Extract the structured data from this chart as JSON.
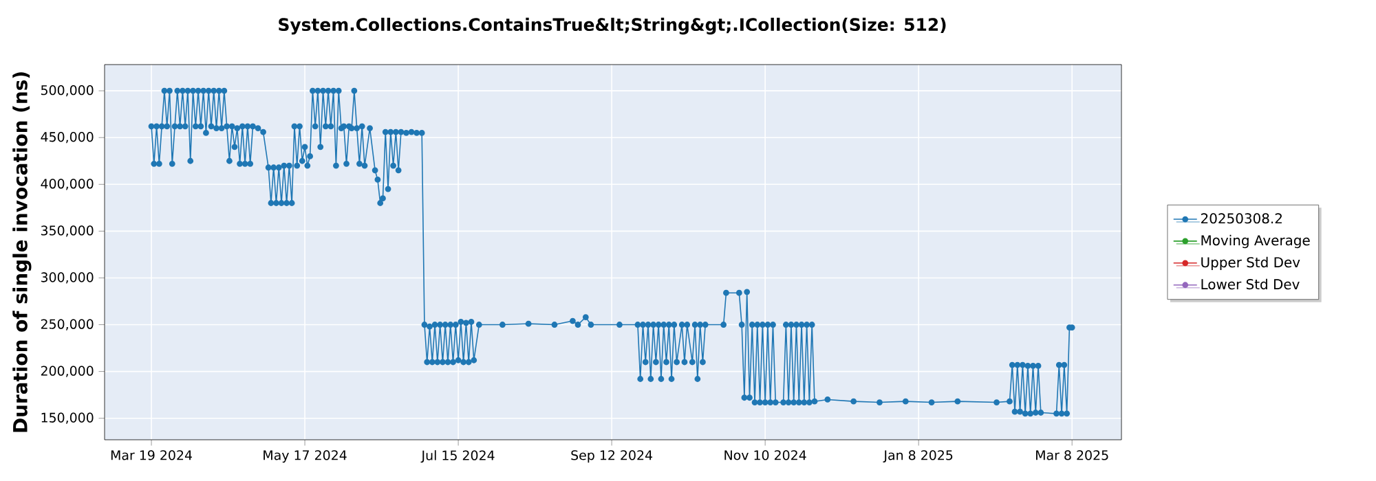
{
  "chart_data": {
    "type": "line",
    "title": "System.Collections.ContainsTrue&lt;String&gt;.ICollection(Size: 512)",
    "ylabel": "Duration of single invocation (ns)",
    "xlim": [
      "2024-03-01",
      "2025-03-27"
    ],
    "xticks": [
      {
        "value": "2024-03-19",
        "label": "Mar 19 2024"
      },
      {
        "value": "2024-05-17",
        "label": "May 17 2024"
      },
      {
        "value": "2024-07-15",
        "label": "Jul 15 2024"
      },
      {
        "value": "2024-09-12",
        "label": "Sep 12 2024"
      },
      {
        "value": "2024-11-10",
        "label": "Nov 10 2024"
      },
      {
        "value": "2025-01-08",
        "label": "Jan 8 2025"
      },
      {
        "value": "2025-03-08",
        "label": "Mar 8 2025"
      }
    ],
    "ylim": [
      127000,
      528000
    ],
    "yticks": [
      {
        "value": 150000,
        "label": "150,000"
      },
      {
        "value": 200000,
        "label": "200,000"
      },
      {
        "value": 250000,
        "label": "250,000"
      },
      {
        "value": 300000,
        "label": "300,000"
      },
      {
        "value": 350000,
        "label": "350,000"
      },
      {
        "value": 400000,
        "label": "400,000"
      },
      {
        "value": 450000,
        "label": "450,000"
      },
      {
        "value": 500000,
        "label": "500,000"
      }
    ],
    "grid": true,
    "legend": "right",
    "marker": "circle",
    "series": [
      {
        "name": "20250308.2",
        "color": "#1f77b4",
        "x": [
          "2024-03-19",
          "2024-03-20",
          "2024-03-21",
          "2024-03-22",
          "2024-03-23",
          "2024-03-24",
          "2024-03-25",
          "2024-03-26",
          "2024-03-27",
          "2024-03-28",
          "2024-03-29",
          "2024-03-30",
          "2024-03-31",
          "2024-04-01",
          "2024-04-02",
          "2024-04-03",
          "2024-04-04",
          "2024-04-05",
          "2024-04-06",
          "2024-04-07",
          "2024-04-08",
          "2024-04-09",
          "2024-04-10",
          "2024-04-11",
          "2024-04-12",
          "2024-04-13",
          "2024-04-14",
          "2024-04-15",
          "2024-04-16",
          "2024-04-17",
          "2024-04-18",
          "2024-04-19",
          "2024-04-20",
          "2024-04-21",
          "2024-04-22",
          "2024-04-23",
          "2024-04-24",
          "2024-04-25",
          "2024-04-26",
          "2024-04-27",
          "2024-04-29",
          "2024-05-01",
          "2024-05-03",
          "2024-05-04",
          "2024-05-05",
          "2024-05-06",
          "2024-05-07",
          "2024-05-08",
          "2024-05-09",
          "2024-05-10",
          "2024-05-11",
          "2024-05-12",
          "2024-05-13",
          "2024-05-14",
          "2024-05-15",
          "2024-05-16",
          "2024-05-17",
          "2024-05-18",
          "2024-05-19",
          "2024-05-20",
          "2024-05-21",
          "2024-05-22",
          "2024-05-23",
          "2024-05-24",
          "2024-05-25",
          "2024-05-26",
          "2024-05-27",
          "2024-05-28",
          "2024-05-29",
          "2024-05-30",
          "2024-05-31",
          "2024-06-01",
          "2024-06-02",
          "2024-06-03",
          "2024-06-04",
          "2024-06-05",
          "2024-06-06",
          "2024-06-07",
          "2024-06-08",
          "2024-06-09",
          "2024-06-11",
          "2024-06-13",
          "2024-06-14",
          "2024-06-15",
          "2024-06-16",
          "2024-06-17",
          "2024-06-18",
          "2024-06-19",
          "2024-06-20",
          "2024-06-21",
          "2024-06-22",
          "2024-06-23",
          "2024-06-25",
          "2024-06-27",
          "2024-06-29",
          "2024-07-01",
          "2024-07-02",
          "2024-07-03",
          "2024-07-04",
          "2024-07-05",
          "2024-07-06",
          "2024-07-07",
          "2024-07-08",
          "2024-07-09",
          "2024-07-10",
          "2024-07-11",
          "2024-07-12",
          "2024-07-13",
          "2024-07-14",
          "2024-07-15",
          "2024-07-16",
          "2024-07-17",
          "2024-07-18",
          "2024-07-19",
          "2024-07-20",
          "2024-07-21",
          "2024-07-23",
          "2024-08-01",
          "2024-08-11",
          "2024-08-21",
          "2024-08-28",
          "2024-08-30",
          "2024-09-02",
          "2024-09-04",
          "2024-09-15",
          "2024-09-22",
          "2024-09-23",
          "2024-09-24",
          "2024-09-25",
          "2024-09-26",
          "2024-09-27",
          "2024-09-28",
          "2024-09-29",
          "2024-09-30",
          "2024-10-01",
          "2024-10-02",
          "2024-10-03",
          "2024-10-04",
          "2024-10-05",
          "2024-10-06",
          "2024-10-07",
          "2024-10-09",
          "2024-10-10",
          "2024-10-11",
          "2024-10-13",
          "2024-10-14",
          "2024-10-15",
          "2024-10-16",
          "2024-10-17",
          "2024-10-18",
          "2024-10-25",
          "2024-10-26",
          "2024-10-31",
          "2024-11-01",
          "2024-11-02",
          "2024-11-03",
          "2024-11-04",
          "2024-11-05",
          "2024-11-06",
          "2024-11-07",
          "2024-11-08",
          "2024-11-09",
          "2024-11-10",
          "2024-11-11",
          "2024-11-12",
          "2024-11-13",
          "2024-11-14",
          "2024-11-17",
          "2024-11-18",
          "2024-11-19",
          "2024-11-20",
          "2024-11-21",
          "2024-11-22",
          "2024-11-23",
          "2024-11-24",
          "2024-11-25",
          "2024-11-26",
          "2024-11-27",
          "2024-11-28",
          "2024-11-29",
          "2024-12-04",
          "2024-12-14",
          "2024-12-24",
          "2025-01-03",
          "2025-01-13",
          "2025-01-23",
          "2025-02-07",
          "2025-02-12",
          "2025-02-13",
          "2025-02-14",
          "2025-02-15",
          "2025-02-16",
          "2025-02-17",
          "2025-02-18",
          "2025-02-19",
          "2025-02-20",
          "2025-02-21",
          "2025-02-22",
          "2025-02-23",
          "2025-02-24",
          "2025-03-02",
          "2025-03-03",
          "2025-03-04",
          "2025-03-05",
          "2025-03-06",
          "2025-03-07",
          "2025-03-08"
        ],
        "values": [
          462000,
          422000,
          462000,
          422000,
          462000,
          500000,
          462000,
          500000,
          422000,
          462000,
          500000,
          462000,
          500000,
          462000,
          500000,
          425000,
          500000,
          462000,
          500000,
          462000,
          500000,
          455000,
          500000,
          462000,
          500000,
          460000,
          500000,
          460000,
          500000,
          462000,
          425000,
          462000,
          440000,
          460000,
          422000,
          462000,
          422000,
          462000,
          422000,
          462000,
          460000,
          456000,
          418000,
          380000,
          418000,
          380000,
          418000,
          380000,
          420000,
          380000,
          420000,
          380000,
          462000,
          420000,
          462000,
          425000,
          440000,
          420000,
          430000,
          500000,
          462000,
          500000,
          440000,
          500000,
          462000,
          500000,
          462000,
          500000,
          420000,
          500000,
          460000,
          462000,
          422000,
          462000,
          460000,
          500000,
          460000,
          422000,
          462000,
          420000,
          460000,
          415000,
          405000,
          380000,
          385000,
          456000,
          395000,
          456000,
          420000,
          456000,
          415000,
          456000,
          455000,
          456000,
          455000,
          455000,
          250000,
          210000,
          248000,
          210000,
          250000,
          210000,
          250000,
          210000,
          250000,
          210000,
          250000,
          210000,
          250000,
          212000,
          253000,
          210000,
          252000,
          210000,
          253000,
          212000,
          250000,
          250000,
          251000,
          250000,
          254000,
          250000,
          258000,
          250000,
          250000,
          250000,
          192000,
          250000,
          210000,
          250000,
          192000,
          250000,
          210000,
          250000,
          192000,
          250000,
          210000,
          250000,
          192000,
          250000,
          210000,
          250000,
          210000,
          250000,
          210000,
          250000,
          192000,
          250000,
          210000,
          250000,
          250000,
          284000,
          284000,
          250000,
          172000,
          285000,
          172000,
          250000,
          167000,
          250000,
          167000,
          250000,
          167000,
          250000,
          167000,
          250000,
          167000,
          167000,
          250000,
          167000,
          250000,
          167000,
          250000,
          167000,
          250000,
          167000,
          250000,
          167000,
          250000,
          168000,
          170000,
          168000,
          167000,
          168000,
          167000,
          168000,
          167000,
          168000,
          207000,
          157000,
          207000,
          157000,
          207000,
          155000,
          206000,
          155000,
          206000,
          156000,
          206000,
          156000,
          155000,
          207000,
          155000,
          207000,
          155000,
          247000,
          247000
        ]
      },
      {
        "name": "Moving Average",
        "color": "#2ca02c"
      },
      {
        "name": "Upper Std Dev",
        "color": "#d62728"
      },
      {
        "name": "Lower Std Dev",
        "color": "#9467bd"
      }
    ]
  }
}
